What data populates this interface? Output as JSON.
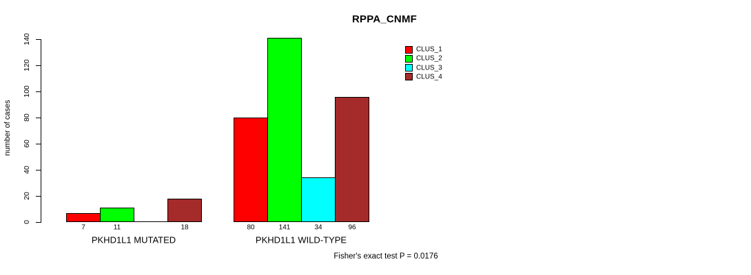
{
  "chart_data": {
    "type": "bar",
    "title": "RPPA_CNMF",
    "ylabel": "number of cases",
    "xlabel": "",
    "yticks": [
      0,
      20,
      40,
      60,
      80,
      100,
      120,
      140
    ],
    "ylim": [
      0,
      141
    ],
    "grid": false,
    "legend_position": "top-right",
    "series": [
      {
        "name": "CLUS_1",
        "color": "#ff0000"
      },
      {
        "name": "CLUS_2",
        "color": "#00ff00"
      },
      {
        "name": "CLUS_3",
        "color": "#00ffff"
      },
      {
        "name": "CLUS_4",
        "color": "#a52a2a"
      }
    ],
    "groups": [
      {
        "label": "PKHD1L1 MUTATED",
        "values": [
          7,
          11,
          0,
          18
        ],
        "bar_labels": [
          "7",
          "11",
          "",
          "18"
        ]
      },
      {
        "label": "PKHD1L1 WILD-TYPE",
        "values": [
          80,
          141,
          34,
          96
        ],
        "bar_labels": [
          "80",
          "141",
          "34",
          "96"
        ]
      }
    ],
    "annotation": "Fisher's exact test P = 0.0176"
  }
}
